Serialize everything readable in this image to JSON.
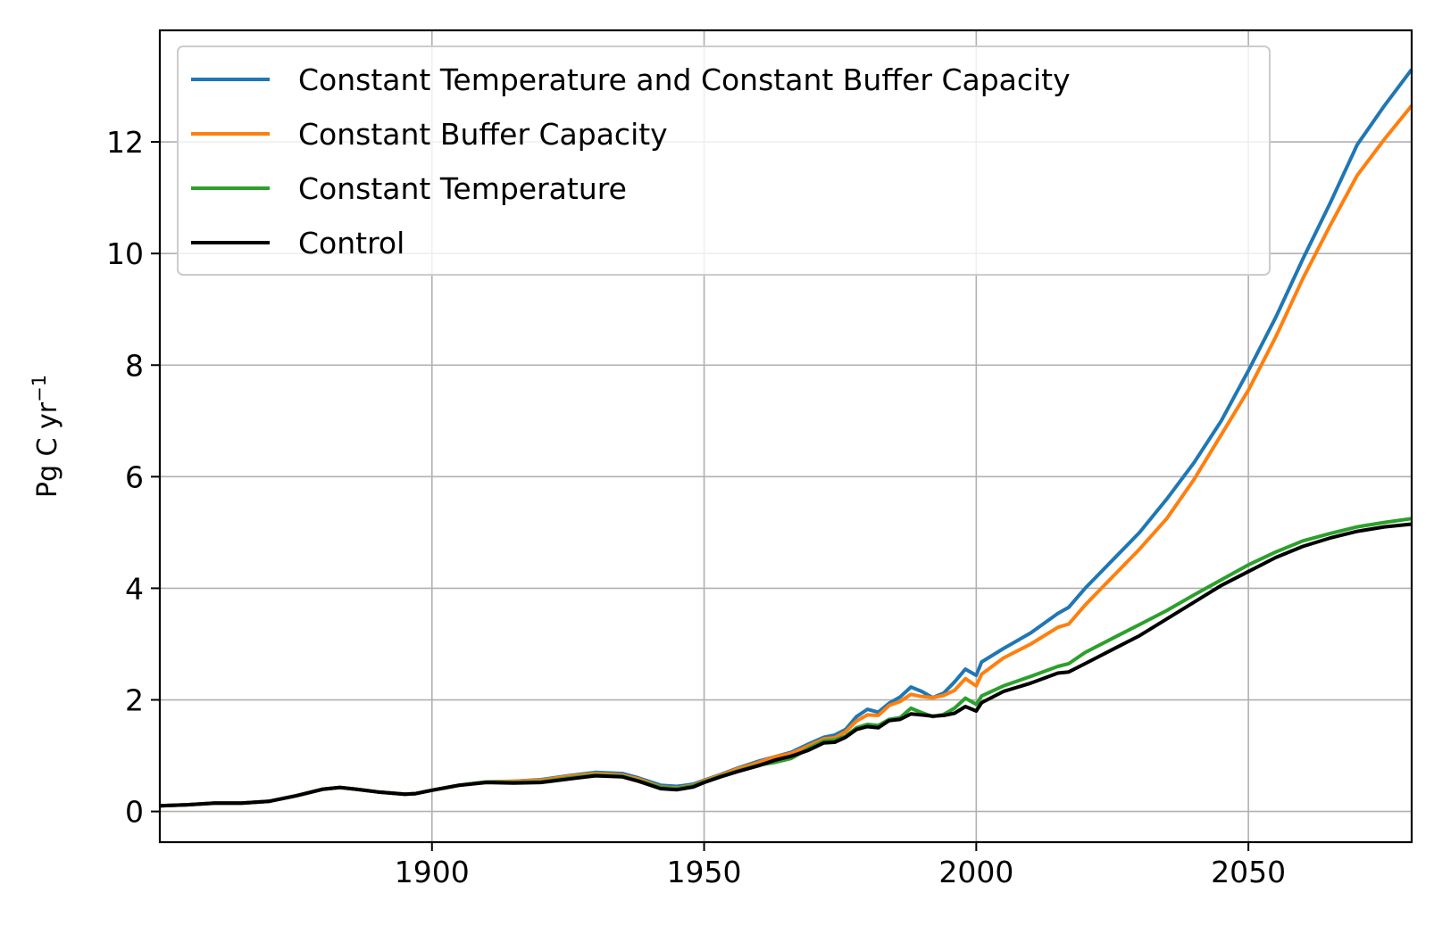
{
  "chart_data": {
    "type": "line",
    "title": "",
    "xlabel": "",
    "ylabel": "Pg C yr",
    "ylabel_superscript": "−1",
    "xlim": [
      1850,
      2080
    ],
    "ylim": [
      -0.55,
      14.0
    ],
    "xticks": [
      1900,
      1950,
      2000,
      2050
    ],
    "yticks": [
      0,
      2,
      4,
      6,
      8,
      10,
      12
    ],
    "grid": true,
    "legend_position": "top-left",
    "series": [
      {
        "name": "Constant Temperature and Constant Buffer Capacity",
        "color": "#1f77b4",
        "points": [
          [
            1850,
            0.1
          ],
          [
            1855,
            0.12
          ],
          [
            1860,
            0.15
          ],
          [
            1865,
            0.15
          ],
          [
            1870,
            0.18
          ],
          [
            1875,
            0.28
          ],
          [
            1880,
            0.4
          ],
          [
            1883,
            0.43
          ],
          [
            1886,
            0.4
          ],
          [
            1890,
            0.35
          ],
          [
            1895,
            0.31
          ],
          [
            1897,
            0.32
          ],
          [
            1900,
            0.38
          ],
          [
            1905,
            0.47
          ],
          [
            1910,
            0.53
          ],
          [
            1915,
            0.54
          ],
          [
            1920,
            0.57
          ],
          [
            1925,
            0.64
          ],
          [
            1930,
            0.7
          ],
          [
            1935,
            0.68
          ],
          [
            1938,
            0.6
          ],
          [
            1942,
            0.47
          ],
          [
            1945,
            0.45
          ],
          [
            1948,
            0.49
          ],
          [
            1950,
            0.56
          ],
          [
            1953,
            0.66
          ],
          [
            1956,
            0.77
          ],
          [
            1960,
            0.9
          ],
          [
            1963,
            0.98
          ],
          [
            1966,
            1.06
          ],
          [
            1969,
            1.2
          ],
          [
            1972,
            1.33
          ],
          [
            1974,
            1.37
          ],
          [
            1976,
            1.47
          ],
          [
            1978,
            1.7
          ],
          [
            1980,
            1.83
          ],
          [
            1982,
            1.78
          ],
          [
            1984,
            1.94
          ],
          [
            1986,
            2.05
          ],
          [
            1988,
            2.23
          ],
          [
            1990,
            2.15
          ],
          [
            1992,
            2.04
          ],
          [
            1994,
            2.12
          ],
          [
            1996,
            2.32
          ],
          [
            1998,
            2.55
          ],
          [
            2000,
            2.44
          ],
          [
            2001,
            2.68
          ],
          [
            2005,
            2.92
          ],
          [
            2010,
            3.2
          ],
          [
            2015,
            3.55
          ],
          [
            2017,
            3.66
          ],
          [
            2020,
            4.0
          ],
          [
            2025,
            4.5
          ],
          [
            2030,
            5.0
          ],
          [
            2035,
            5.6
          ],
          [
            2040,
            6.25
          ],
          [
            2045,
            7.0
          ],
          [
            2050,
            7.9
          ],
          [
            2055,
            8.85
          ],
          [
            2060,
            9.9
          ],
          [
            2065,
            10.9
          ],
          [
            2070,
            11.95
          ],
          [
            2075,
            12.65
          ],
          [
            2080,
            13.3
          ]
        ]
      },
      {
        "name": "Constant Buffer Capacity",
        "color": "#ff7f0e",
        "points": [
          [
            1850,
            0.1
          ],
          [
            1855,
            0.12
          ],
          [
            1860,
            0.15
          ],
          [
            1865,
            0.15
          ],
          [
            1870,
            0.18
          ],
          [
            1875,
            0.28
          ],
          [
            1880,
            0.4
          ],
          [
            1883,
            0.43
          ],
          [
            1886,
            0.4
          ],
          [
            1890,
            0.35
          ],
          [
            1895,
            0.31
          ],
          [
            1897,
            0.32
          ],
          [
            1900,
            0.38
          ],
          [
            1905,
            0.47
          ],
          [
            1910,
            0.53
          ],
          [
            1915,
            0.54
          ],
          [
            1920,
            0.56
          ],
          [
            1925,
            0.63
          ],
          [
            1930,
            0.68
          ],
          [
            1935,
            0.65
          ],
          [
            1938,
            0.58
          ],
          [
            1942,
            0.44
          ],
          [
            1945,
            0.42
          ],
          [
            1948,
            0.47
          ],
          [
            1950,
            0.55
          ],
          [
            1953,
            0.65
          ],
          [
            1956,
            0.76
          ],
          [
            1960,
            0.88
          ],
          [
            1963,
            0.98
          ],
          [
            1966,
            1.04
          ],
          [
            1969,
            1.17
          ],
          [
            1972,
            1.3
          ],
          [
            1974,
            1.32
          ],
          [
            1976,
            1.43
          ],
          [
            1978,
            1.62
          ],
          [
            1980,
            1.73
          ],
          [
            1982,
            1.72
          ],
          [
            1984,
            1.9
          ],
          [
            1986,
            1.97
          ],
          [
            1988,
            2.1
          ],
          [
            1990,
            2.06
          ],
          [
            1992,
            2.04
          ],
          [
            1994,
            2.08
          ],
          [
            1996,
            2.17
          ],
          [
            1998,
            2.38
          ],
          [
            2000,
            2.25
          ],
          [
            2001,
            2.46
          ],
          [
            2005,
            2.75
          ],
          [
            2010,
            3.0
          ],
          [
            2015,
            3.3
          ],
          [
            2017,
            3.36
          ],
          [
            2020,
            3.7
          ],
          [
            2025,
            4.2
          ],
          [
            2030,
            4.7
          ],
          [
            2035,
            5.25
          ],
          [
            2040,
            5.95
          ],
          [
            2045,
            6.75
          ],
          [
            2050,
            7.55
          ],
          [
            2055,
            8.5
          ],
          [
            2060,
            9.55
          ],
          [
            2065,
            10.5
          ],
          [
            2070,
            11.4
          ],
          [
            2075,
            12.05
          ],
          [
            2080,
            12.65
          ]
        ]
      },
      {
        "name": "Constant Temperature",
        "color": "#2ca02c",
        "points": [
          [
            1850,
            0.1
          ],
          [
            1855,
            0.12
          ],
          [
            1860,
            0.15
          ],
          [
            1865,
            0.15
          ],
          [
            1870,
            0.18
          ],
          [
            1875,
            0.28
          ],
          [
            1880,
            0.4
          ],
          [
            1883,
            0.43
          ],
          [
            1886,
            0.4
          ],
          [
            1890,
            0.35
          ],
          [
            1895,
            0.31
          ],
          [
            1897,
            0.32
          ],
          [
            1900,
            0.38
          ],
          [
            1905,
            0.47
          ],
          [
            1910,
            0.53
          ],
          [
            1915,
            0.52
          ],
          [
            1920,
            0.53
          ],
          [
            1925,
            0.6
          ],
          [
            1930,
            0.65
          ],
          [
            1935,
            0.63
          ],
          [
            1938,
            0.55
          ],
          [
            1942,
            0.43
          ],
          [
            1945,
            0.41
          ],
          [
            1948,
            0.46
          ],
          [
            1950,
            0.53
          ],
          [
            1953,
            0.63
          ],
          [
            1956,
            0.72
          ],
          [
            1960,
            0.83
          ],
          [
            1963,
            0.88
          ],
          [
            1966,
            0.95
          ],
          [
            1969,
            1.12
          ],
          [
            1972,
            1.26
          ],
          [
            1974,
            1.28
          ],
          [
            1976,
            1.35
          ],
          [
            1978,
            1.5
          ],
          [
            1980,
            1.56
          ],
          [
            1982,
            1.54
          ],
          [
            1984,
            1.65
          ],
          [
            1986,
            1.68
          ],
          [
            1988,
            1.85
          ],
          [
            1990,
            1.77
          ],
          [
            1992,
            1.7
          ],
          [
            1994,
            1.74
          ],
          [
            1996,
            1.85
          ],
          [
            1998,
            2.03
          ],
          [
            2000,
            1.92
          ],
          [
            2001,
            2.07
          ],
          [
            2005,
            2.25
          ],
          [
            2010,
            2.42
          ],
          [
            2015,
            2.6
          ],
          [
            2017,
            2.65
          ],
          [
            2020,
            2.85
          ],
          [
            2025,
            3.1
          ],
          [
            2030,
            3.35
          ],
          [
            2035,
            3.6
          ],
          [
            2040,
            3.88
          ],
          [
            2045,
            4.15
          ],
          [
            2050,
            4.42
          ],
          [
            2055,
            4.65
          ],
          [
            2060,
            4.85
          ],
          [
            2065,
            4.98
          ],
          [
            2070,
            5.1
          ],
          [
            2075,
            5.18
          ],
          [
            2080,
            5.25
          ]
        ]
      },
      {
        "name": "Control",
        "color": "#000000",
        "points": [
          [
            1850,
            0.1
          ],
          [
            1855,
            0.12
          ],
          [
            1860,
            0.15
          ],
          [
            1865,
            0.15
          ],
          [
            1870,
            0.18
          ],
          [
            1875,
            0.28
          ],
          [
            1880,
            0.4
          ],
          [
            1883,
            0.43
          ],
          [
            1886,
            0.4
          ],
          [
            1890,
            0.35
          ],
          [
            1895,
            0.31
          ],
          [
            1897,
            0.32
          ],
          [
            1900,
            0.38
          ],
          [
            1905,
            0.47
          ],
          [
            1910,
            0.52
          ],
          [
            1915,
            0.51
          ],
          [
            1920,
            0.52
          ],
          [
            1925,
            0.58
          ],
          [
            1930,
            0.64
          ],
          [
            1935,
            0.62
          ],
          [
            1938,
            0.54
          ],
          [
            1942,
            0.41
          ],
          [
            1945,
            0.39
          ],
          [
            1948,
            0.44
          ],
          [
            1950,
            0.52
          ],
          [
            1953,
            0.62
          ],
          [
            1956,
            0.71
          ],
          [
            1960,
            0.82
          ],
          [
            1963,
            0.92
          ],
          [
            1966,
            0.99
          ],
          [
            1969,
            1.09
          ],
          [
            1972,
            1.23
          ],
          [
            1974,
            1.24
          ],
          [
            1976,
            1.33
          ],
          [
            1978,
            1.47
          ],
          [
            1980,
            1.52
          ],
          [
            1982,
            1.5
          ],
          [
            1984,
            1.63
          ],
          [
            1986,
            1.65
          ],
          [
            1988,
            1.75
          ],
          [
            1990,
            1.73
          ],
          [
            1992,
            1.71
          ],
          [
            1994,
            1.72
          ],
          [
            1996,
            1.76
          ],
          [
            1998,
            1.88
          ],
          [
            2000,
            1.8
          ],
          [
            2001,
            1.95
          ],
          [
            2005,
            2.15
          ],
          [
            2010,
            2.3
          ],
          [
            2015,
            2.48
          ],
          [
            2017,
            2.5
          ],
          [
            2020,
            2.65
          ],
          [
            2025,
            2.9
          ],
          [
            2030,
            3.15
          ],
          [
            2035,
            3.45
          ],
          [
            2040,
            3.75
          ],
          [
            2045,
            4.05
          ],
          [
            2050,
            4.3
          ],
          [
            2055,
            4.55
          ],
          [
            2060,
            4.75
          ],
          [
            2065,
            4.9
          ],
          [
            2070,
            5.02
          ],
          [
            2075,
            5.1
          ],
          [
            2080,
            5.15
          ]
        ]
      }
    ]
  }
}
